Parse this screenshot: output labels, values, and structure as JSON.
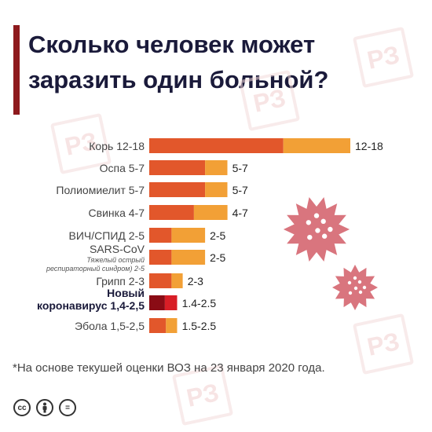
{
  "title": "Сколько человек может заразить один больной?",
  "watermark_text": "РЗ",
  "footnote": "*На основе текушей оценки ВОЗ на 23 января 2020 года.",
  "license_icons": [
    "cc-icon",
    "attribution-icon",
    "no-derivatives-icon"
  ],
  "license_labels": [
    "cc",
    "",
    "="
  ],
  "colors": {
    "dark": "#e2572b",
    "light": "#f2a036",
    "highlight_dark": "#8a0c15",
    "highlight_light": "#d81e26",
    "title_bar": "#8e1a1d",
    "virus": "#d9757e"
  },
  "chart_data": {
    "type": "bar",
    "orientation": "horizontal",
    "stacked_range": true,
    "title": "",
    "xlabel": "",
    "ylabel": "",
    "xlim": [
      0,
      18
    ],
    "grid": false,
    "legend": "none",
    "rows": [
      {
        "label": "Корь 12-18",
        "sublabel": "",
        "min": 12,
        "max": 18,
        "value_label": "12-18",
        "highlight": false
      },
      {
        "label": "Оспа 5-7",
        "sublabel": "",
        "min": 5,
        "max": 7,
        "value_label": "5-7",
        "highlight": false
      },
      {
        "label": "Полиомиелит 5-7",
        "sublabel": "",
        "min": 5,
        "max": 7,
        "value_label": "5-7",
        "highlight": false
      },
      {
        "label": "Свинка 4-7",
        "sublabel": "",
        "min": 4,
        "max": 7,
        "value_label": "4-7",
        "highlight": false
      },
      {
        "label": "ВИЧ/СПИД 2-5",
        "sublabel": "",
        "min": 2,
        "max": 5,
        "value_label": "2-5",
        "highlight": false
      },
      {
        "label": "SARS-CoV",
        "sublabel": "Тяжелый острый респираторный синдром) 2-5",
        "min": 2,
        "max": 5,
        "value_label": "2-5",
        "highlight": false
      },
      {
        "label": "Грипп 2-3",
        "sublabel": "",
        "min": 2,
        "max": 3,
        "value_label": "2-3",
        "highlight": false
      },
      {
        "label": "Новый коронавирус 1,4-2,5",
        "sublabel": "",
        "min": 1.4,
        "max": 2.5,
        "value_label": "1.4-2.5",
        "highlight": true
      },
      {
        "label": "Эбола 1,5-2,5",
        "sublabel": "",
        "min": 1.5,
        "max": 2.5,
        "value_label": "1.5-2.5",
        "highlight": false
      }
    ]
  }
}
